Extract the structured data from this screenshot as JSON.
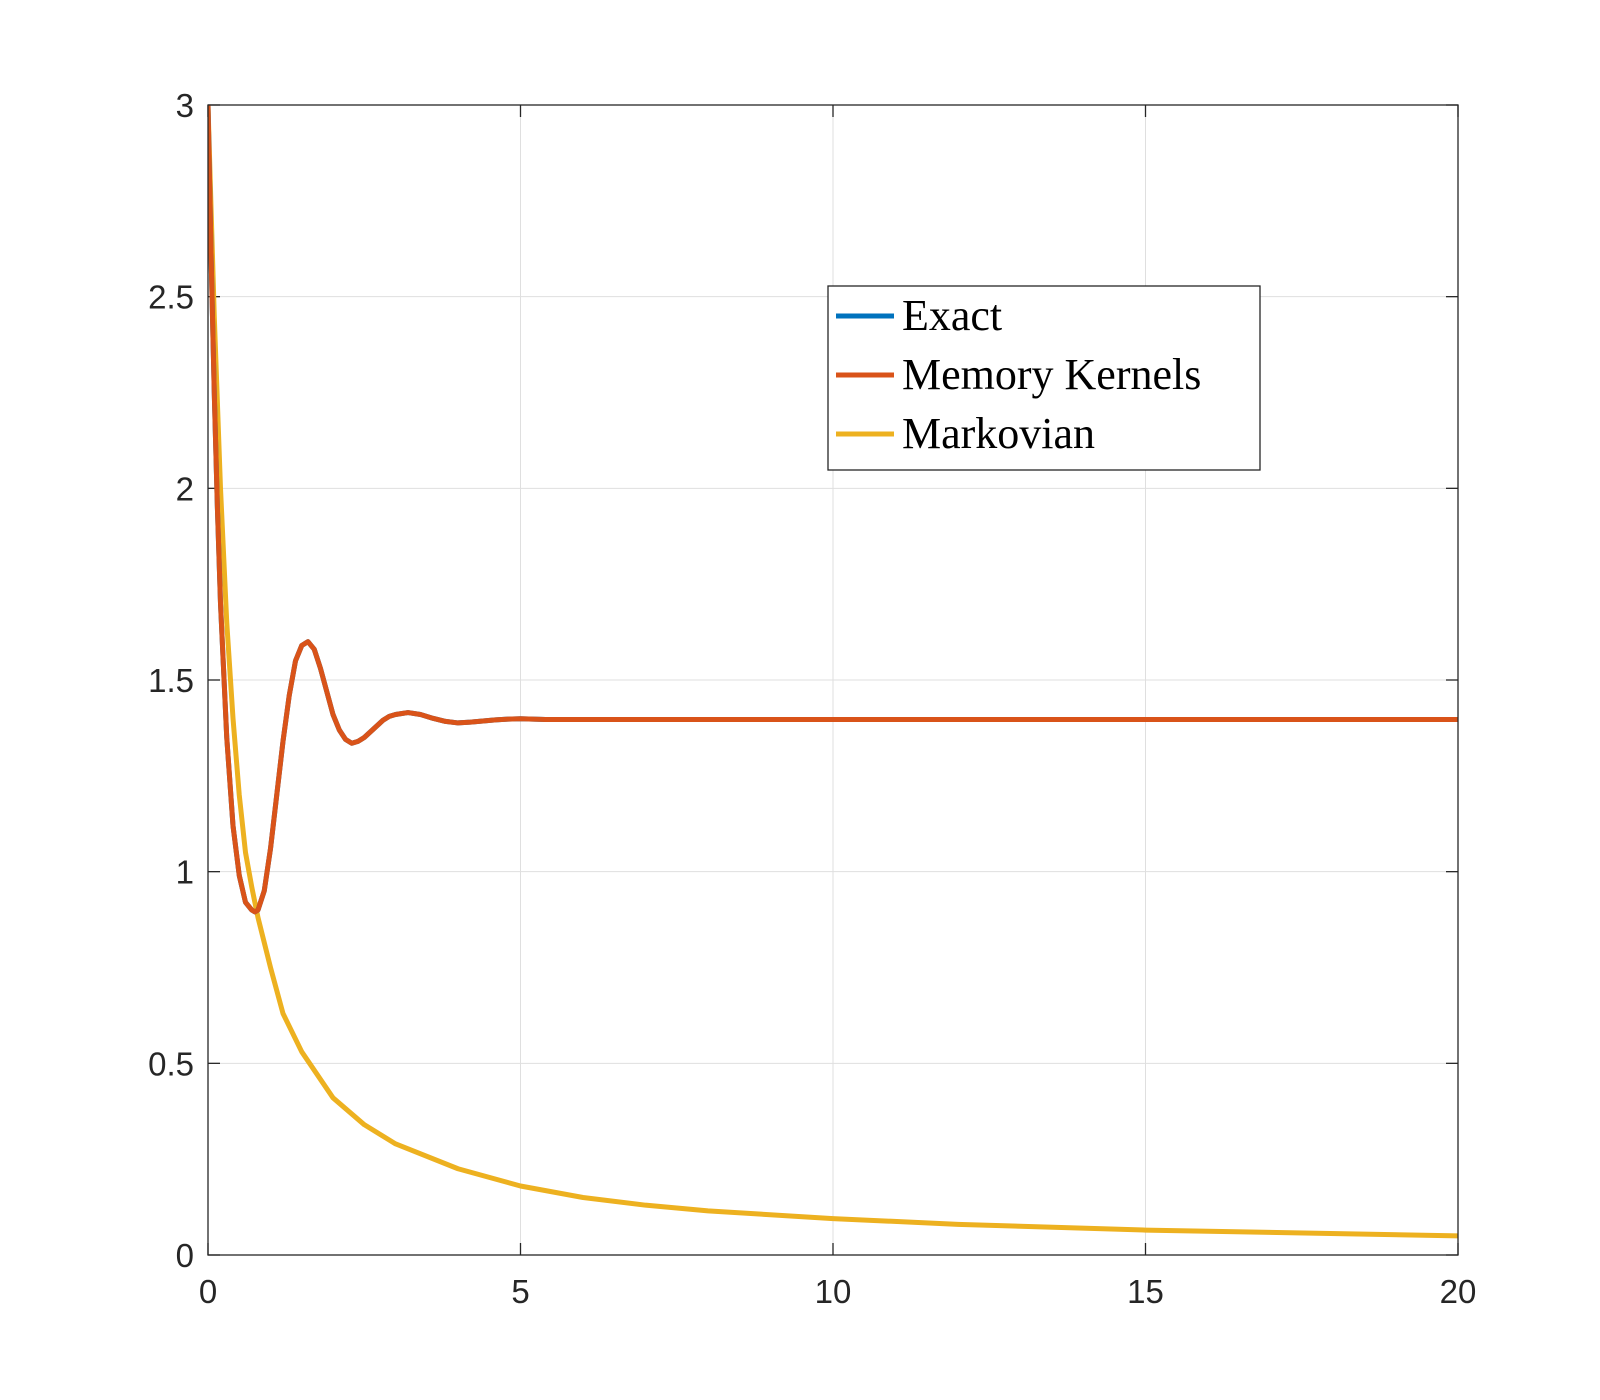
{
  "chart_data": {
    "type": "line",
    "title": "",
    "xlabel": "",
    "ylabel": "",
    "xlim": [
      0,
      20
    ],
    "ylim": [
      0,
      3
    ],
    "xticks": [
      0,
      5,
      10,
      15,
      20
    ],
    "xtick_labels": [
      "0",
      "5",
      "10",
      "15",
      "20"
    ],
    "yticks": [
      0,
      0.5,
      1,
      1.5,
      2,
      2.5,
      3
    ],
    "ytick_labels": [
      "0",
      "0.5",
      "1",
      "1.5",
      "2",
      "2.5",
      "3"
    ],
    "grid": true,
    "box": true,
    "legend_placement": "upper-right-inset",
    "series": [
      {
        "name": "Exact",
        "color": "#0072BD",
        "x": [
          0,
          0.05,
          0.1,
          0.15,
          0.2,
          0.3,
          0.4,
          0.5,
          0.6,
          0.7,
          0.75,
          0.8,
          0.9,
          1.0,
          1.1,
          1.2,
          1.3,
          1.4,
          1.5,
          1.6,
          1.7,
          1.8,
          1.9,
          2.0,
          2.1,
          2.2,
          2.3,
          2.4,
          2.5,
          2.6,
          2.7,
          2.8,
          2.9,
          3.0,
          3.2,
          3.4,
          3.6,
          3.8,
          4.0,
          4.2,
          4.4,
          4.6,
          4.8,
          5.0,
          5.2,
          5.4,
          5.6,
          5.8,
          6.0,
          7.0,
          8.0,
          10.0,
          12.0,
          15.0,
          20.0
        ],
        "y": [
          3.0,
          2.6,
          2.25,
          1.95,
          1.7,
          1.35,
          1.12,
          0.99,
          0.92,
          0.9,
          0.895,
          0.9,
          0.95,
          1.06,
          1.2,
          1.34,
          1.46,
          1.55,
          1.59,
          1.6,
          1.58,
          1.53,
          1.47,
          1.41,
          1.37,
          1.345,
          1.335,
          1.34,
          1.35,
          1.365,
          1.38,
          1.395,
          1.405,
          1.41,
          1.415,
          1.41,
          1.4,
          1.392,
          1.388,
          1.39,
          1.393,
          1.396,
          1.398,
          1.399,
          1.398,
          1.397,
          1.397,
          1.397,
          1.397,
          1.397,
          1.397,
          1.397,
          1.397,
          1.397,
          1.397
        ]
      },
      {
        "name": "Memory Kernels",
        "color": "#D95319",
        "x": [
          0,
          0.05,
          0.1,
          0.15,
          0.2,
          0.3,
          0.4,
          0.5,
          0.6,
          0.7,
          0.75,
          0.8,
          0.9,
          1.0,
          1.1,
          1.2,
          1.3,
          1.4,
          1.5,
          1.6,
          1.7,
          1.8,
          1.9,
          2.0,
          2.1,
          2.2,
          2.3,
          2.4,
          2.5,
          2.6,
          2.7,
          2.8,
          2.9,
          3.0,
          3.2,
          3.4,
          3.6,
          3.8,
          4.0,
          4.2,
          4.4,
          4.6,
          4.8,
          5.0,
          5.2,
          5.4,
          5.6,
          5.8,
          6.0,
          7.0,
          8.0,
          10.0,
          12.0,
          15.0,
          20.0
        ],
        "y": [
          3.0,
          2.6,
          2.25,
          1.95,
          1.7,
          1.35,
          1.12,
          0.99,
          0.92,
          0.9,
          0.895,
          0.9,
          0.95,
          1.06,
          1.2,
          1.34,
          1.46,
          1.55,
          1.59,
          1.6,
          1.58,
          1.53,
          1.47,
          1.41,
          1.37,
          1.345,
          1.335,
          1.34,
          1.35,
          1.365,
          1.38,
          1.395,
          1.405,
          1.41,
          1.415,
          1.41,
          1.4,
          1.392,
          1.388,
          1.39,
          1.393,
          1.396,
          1.398,
          1.399,
          1.398,
          1.397,
          1.397,
          1.397,
          1.397,
          1.397,
          1.397,
          1.397,
          1.397,
          1.397,
          1.397
        ]
      },
      {
        "name": "Markovian",
        "color": "#EDB120",
        "x": [
          0,
          0.1,
          0.2,
          0.3,
          0.4,
          0.5,
          0.6,
          0.7,
          0.8,
          1.0,
          1.2,
          1.5,
          2.0,
          2.5,
          3.0,
          4.0,
          5.0,
          6.0,
          7.0,
          8.0,
          10.0,
          12.0,
          15.0,
          20.0
        ],
        "y": [
          3.0,
          2.45,
          2.0,
          1.65,
          1.4,
          1.2,
          1.05,
          0.96,
          0.88,
          0.75,
          0.63,
          0.53,
          0.41,
          0.34,
          0.29,
          0.225,
          0.18,
          0.15,
          0.13,
          0.115,
          0.095,
          0.08,
          0.065,
          0.05
        ]
      }
    ]
  }
}
